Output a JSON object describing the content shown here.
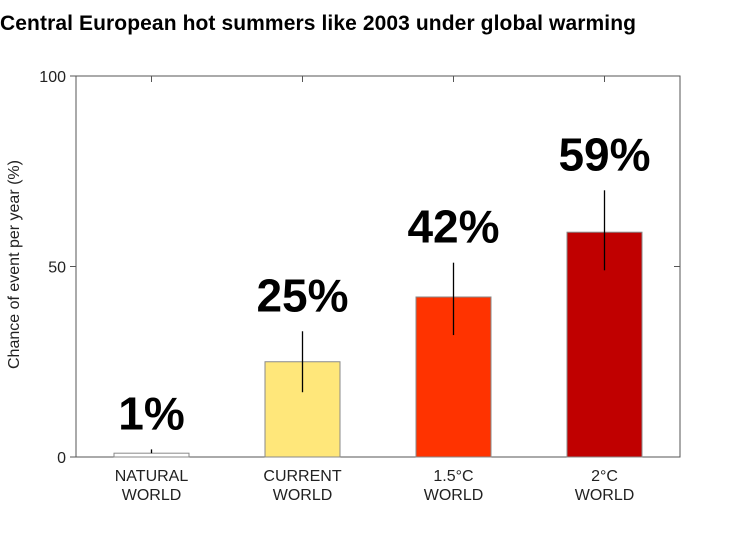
{
  "chart_data": {
    "type": "bar",
    "title": "Central European hot summers like 2003 under global warming",
    "ylabel": "Chance of event per year (%)",
    "xlabel": "",
    "ylim": [
      0,
      100
    ],
    "yticks": [
      0,
      50,
      100
    ],
    "categories": [
      [
        "NATURAL",
        "WORLD"
      ],
      [
        "CURRENT",
        "WORLD"
      ],
      [
        "1.5°C",
        "WORLD"
      ],
      [
        "2°C",
        "WORLD"
      ]
    ],
    "values": [
      1,
      25,
      42,
      59
    ],
    "data_labels": [
      "1%",
      "25%",
      "42%",
      "59%"
    ],
    "error_low": [
      1,
      17,
      32,
      49
    ],
    "error_high": [
      2,
      33,
      51,
      70
    ],
    "colors": [
      "#ffffff",
      "#ffe77a",
      "#ff3300",
      "#c00000"
    ],
    "grid": false,
    "legend": "none"
  }
}
